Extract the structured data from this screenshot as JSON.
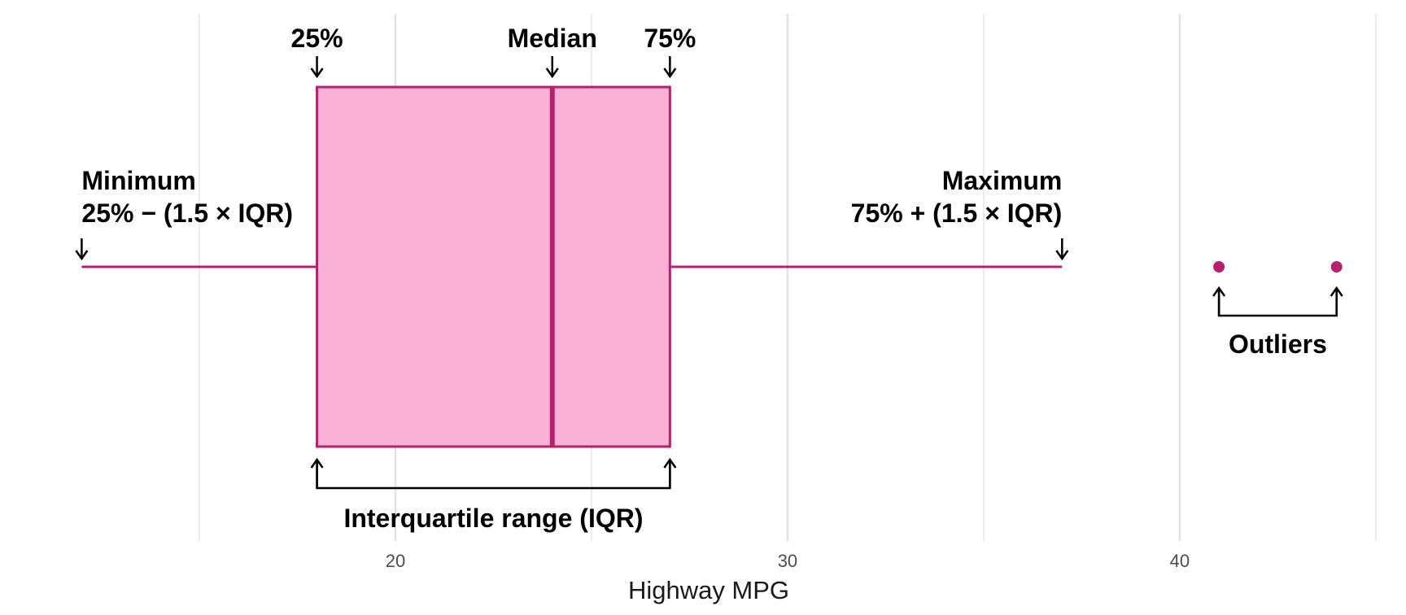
{
  "chart_data": {
    "type": "box",
    "xlabel": "Highway MPG",
    "xlim": [
      10,
      45.5
    ],
    "xticks": [
      20,
      30,
      40
    ],
    "minor_xticks": [
      15,
      25,
      35,
      45
    ],
    "grid": true,
    "color": "#b5206f",
    "fill": "#fbb0d5",
    "box": {
      "min": 12,
      "q1": 18,
      "median": 24,
      "q3": 27,
      "max": 37
    },
    "outliers": [
      41,
      44
    ],
    "annotations": {
      "q1": "25%",
      "median": "Median",
      "q3": "75%",
      "min": [
        "Minimum",
        "25% − (1.5 × IQR)"
      ],
      "max": [
        "Maximum",
        "75% + (1.5 × IQR)"
      ],
      "iqr": "Interquartile range (IQR)",
      "outliers": "Outliers"
    }
  }
}
